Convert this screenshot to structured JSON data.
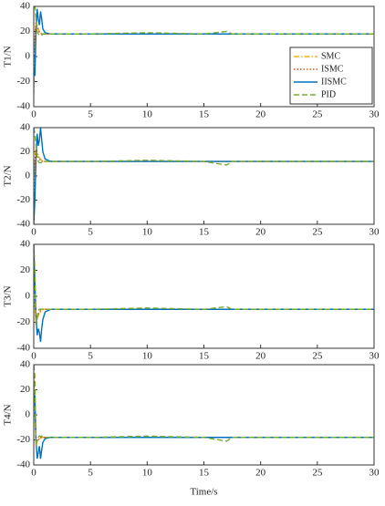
{
  "chart_data": [
    {
      "type": "line",
      "ylabel": "T1/N",
      "legend": "upper right",
      "x": [
        0,
        0.1,
        0.2,
        0.3,
        0.4,
        0.5,
        0.6,
        0.7,
        0.8,
        1,
        1.5,
        2,
        5,
        10,
        15,
        17,
        17.5,
        20,
        25,
        30
      ],
      "xlim": [
        0,
        30
      ],
      "ylim": [
        -40,
        40
      ],
      "xticks": [
        0,
        5,
        10,
        15,
        20,
        25,
        30
      ],
      "yticks": [
        -40,
        -20,
        0,
        20,
        40
      ],
      "series": [
        {
          "name": "SMC",
          "color": "#EDB120",
          "linestyle": "dashdot",
          "values": [
            -30,
            10,
            30,
            25,
            22,
            20,
            19,
            18.5,
            18,
            18,
            18,
            18,
            18,
            18,
            18,
            18,
            18,
            18,
            18,
            18
          ]
        },
        {
          "name": "ISMC",
          "color": "#D95319",
          "linestyle": "dotted",
          "values": [
            -25,
            15,
            28,
            24,
            21,
            19,
            18.5,
            18,
            18,
            18,
            18,
            18,
            18,
            18,
            18,
            18,
            18,
            18,
            18,
            18
          ]
        },
        {
          "name": "IISMC",
          "color": "#0072BD",
          "linestyle": "solid",
          "values": [
            -15,
            -15,
            20,
            38,
            30,
            25,
            36,
            30,
            22,
            19,
            18,
            18,
            18,
            18,
            18,
            18,
            18,
            18,
            18,
            18
          ]
        },
        {
          "name": "PID",
          "color": "#77AC30",
          "linestyle": "dashed",
          "values": [
            40,
            40,
            30,
            20,
            18,
            17,
            17,
            17,
            18,
            18,
            18,
            18,
            18,
            19,
            18,
            20,
            18,
            18,
            18,
            18
          ]
        }
      ]
    },
    {
      "type": "line",
      "ylabel": "T2/N",
      "x": [
        0,
        0.1,
        0.2,
        0.3,
        0.4,
        0.5,
        0.6,
        0.7,
        0.8,
        1,
        1.5,
        2,
        5,
        10,
        15,
        17,
        17.5,
        20,
        25,
        30
      ],
      "xlim": [
        0,
        30
      ],
      "ylim": [
        -40,
        40
      ],
      "xticks": [
        0,
        5,
        10,
        15,
        20,
        25,
        30
      ],
      "yticks": [
        -40,
        -20,
        0,
        20,
        40
      ],
      "series": [
        {
          "color": "#EDB120",
          "linestyle": "dashdot",
          "values": [
            -35,
            10,
            25,
            20,
            17,
            15,
            14,
            13,
            12,
            12,
            12,
            12,
            12,
            12,
            12,
            12,
            12,
            12,
            12,
            12
          ]
        },
        {
          "color": "#D95319",
          "linestyle": "dotted",
          "values": [
            -30,
            12,
            22,
            18,
            15,
            14,
            13,
            12,
            12,
            12,
            12,
            12,
            12,
            12,
            12,
            12,
            12,
            12,
            12,
            12
          ]
        },
        {
          "color": "#0072BD",
          "linestyle": "solid",
          "values": [
            -40,
            -20,
            15,
            35,
            25,
            30,
            40,
            30,
            20,
            14,
            12,
            12,
            12,
            12,
            12,
            12,
            12,
            12,
            12,
            12
          ]
        },
        {
          "color": "#77AC30",
          "linestyle": "dashed",
          "values": [
            40,
            35,
            25,
            15,
            12,
            11,
            11,
            11,
            12,
            12,
            12,
            12,
            12,
            13,
            12,
            9,
            12,
            12,
            12,
            12
          ]
        }
      ]
    },
    {
      "type": "line",
      "ylabel": "T3/N",
      "x": [
        0,
        0.1,
        0.2,
        0.3,
        0.4,
        0.5,
        0.6,
        0.7,
        0.8,
        1,
        1.5,
        2,
        5,
        10,
        15,
        17,
        17.5,
        20,
        25,
        30
      ],
      "xlim": [
        0,
        30
      ],
      "ylim": [
        -40,
        40
      ],
      "xticks": [
        0,
        5,
        10,
        15,
        20,
        25,
        30
      ],
      "yticks": [
        -40,
        -20,
        0,
        20,
        40
      ],
      "series": [
        {
          "color": "#EDB120",
          "linestyle": "dashdot",
          "values": [
            30,
            -5,
            -22,
            -18,
            -15,
            -13,
            -12,
            -11,
            -10,
            -10,
            -10,
            -10,
            -10,
            -10,
            -10,
            -10,
            -10,
            -10,
            -10,
            -10
          ]
        },
        {
          "color": "#D95319",
          "linestyle": "dotted",
          "values": [
            25,
            -8,
            -20,
            -16,
            -14,
            -12,
            -11,
            -10,
            -10,
            -10,
            -10,
            -10,
            -10,
            -10,
            -10,
            -10,
            -10,
            -10,
            -10,
            -10
          ]
        },
        {
          "color": "#0072BD",
          "linestyle": "solid",
          "values": [
            40,
            10,
            -15,
            -30,
            -25,
            -28,
            -35,
            -25,
            -18,
            -12,
            -10,
            -10,
            -10,
            -10,
            -10,
            -10,
            -10,
            -10,
            -10,
            -10
          ]
        },
        {
          "color": "#77AC30",
          "linestyle": "dashed",
          "values": [
            40,
            20,
            -20,
            -15,
            -11,
            -10,
            -10,
            -10,
            -10,
            -10,
            -10,
            -10,
            -10,
            -9,
            -10,
            -8,
            -10,
            -10,
            -10,
            -10
          ]
        }
      ]
    },
    {
      "type": "line",
      "ylabel": "T4/N",
      "xlabel": "Time/s",
      "x": [
        0,
        0.1,
        0.2,
        0.3,
        0.4,
        0.5,
        0.6,
        0.7,
        0.8,
        1,
        1.5,
        2,
        5,
        10,
        15,
        17,
        17.5,
        20,
        25,
        30
      ],
      "xlim": [
        0,
        30
      ],
      "ylim": [
        -40,
        40
      ],
      "xticks": [
        0,
        5,
        10,
        15,
        20,
        25,
        30
      ],
      "yticks": [
        -40,
        -20,
        0,
        20,
        40
      ],
      "series": [
        {
          "color": "#EDB120",
          "linestyle": "dashdot",
          "values": [
            35,
            5,
            -25,
            -22,
            -20,
            -19,
            -18.5,
            -18,
            -18,
            -18,
            -18,
            -18,
            -18,
            -18,
            -18,
            -18,
            -18,
            -18,
            -18,
            -18
          ]
        },
        {
          "color": "#D95319",
          "linestyle": "dotted",
          "values": [
            30,
            0,
            -24,
            -21,
            -20,
            -19,
            -18,
            -18,
            -18,
            -18,
            -18,
            -18,
            -18,
            -18,
            -18,
            -18,
            -18,
            -18,
            -18,
            -18
          ]
        },
        {
          "color": "#0072BD",
          "linestyle": "solid",
          "values": [
            15,
            15,
            -20,
            -35,
            -30,
            -25,
            -35,
            -28,
            -22,
            -19,
            -18,
            -18,
            -18,
            -18,
            -18,
            -18,
            -18,
            -18,
            -18,
            -18
          ]
        },
        {
          "color": "#77AC30",
          "linestyle": "dashed",
          "values": [
            40,
            30,
            -25,
            -20,
            -18,
            -17,
            -17,
            -17,
            -18,
            -18,
            -18,
            -18,
            -18,
            -17,
            -18,
            -21,
            -18,
            -18,
            -18,
            -18
          ]
        }
      ]
    }
  ]
}
